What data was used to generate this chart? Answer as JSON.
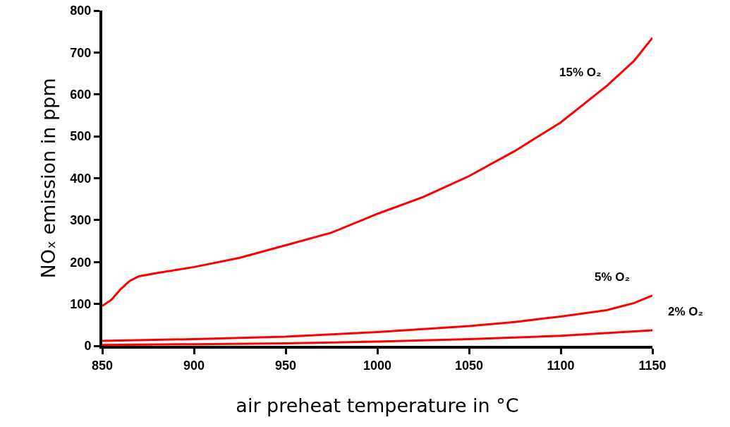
{
  "chart_data": {
    "type": "line",
    "xlabel": "air preheat temperature in °C",
    "ylabel": "NOₓ emission in ppm",
    "xlim": [
      850,
      1150
    ],
    "xticks": [
      850,
      900,
      950,
      1000,
      1050,
      1100,
      1150
    ],
    "ylim": [
      0,
      800
    ],
    "yticks": [
      0,
      100,
      200,
      300,
      400,
      500,
      600,
      700,
      800
    ],
    "grid": false,
    "legend": false,
    "marker": "none",
    "line_style": "solid",
    "series": [
      {
        "name": "15% O₂",
        "color": "#ff0000",
        "x": [
          850,
          855,
          860,
          865,
          870,
          880,
          900,
          925,
          950,
          975,
          1000,
          1025,
          1050,
          1075,
          1100,
          1125,
          1140,
          1150
        ],
        "values": [
          95,
          110,
          135,
          155,
          166,
          174,
          188,
          210,
          240,
          270,
          315,
          355,
          405,
          465,
          533,
          620,
          680,
          735
        ]
      },
      {
        "name": "5% O₂",
        "color": "#ff0000",
        "x": [
          850,
          900,
          950,
          1000,
          1050,
          1075,
          1100,
          1125,
          1140,
          1150
        ],
        "values": [
          12,
          16,
          22,
          33,
          47,
          57,
          70,
          85,
          102,
          120
        ]
      },
      {
        "name": "2% O₂",
        "color": "#ff0000",
        "x": [
          850,
          900,
          950,
          1000,
          1050,
          1100,
          1150
        ],
        "values": [
          2,
          4,
          6,
          10,
          16,
          24,
          37
        ]
      }
    ]
  }
}
